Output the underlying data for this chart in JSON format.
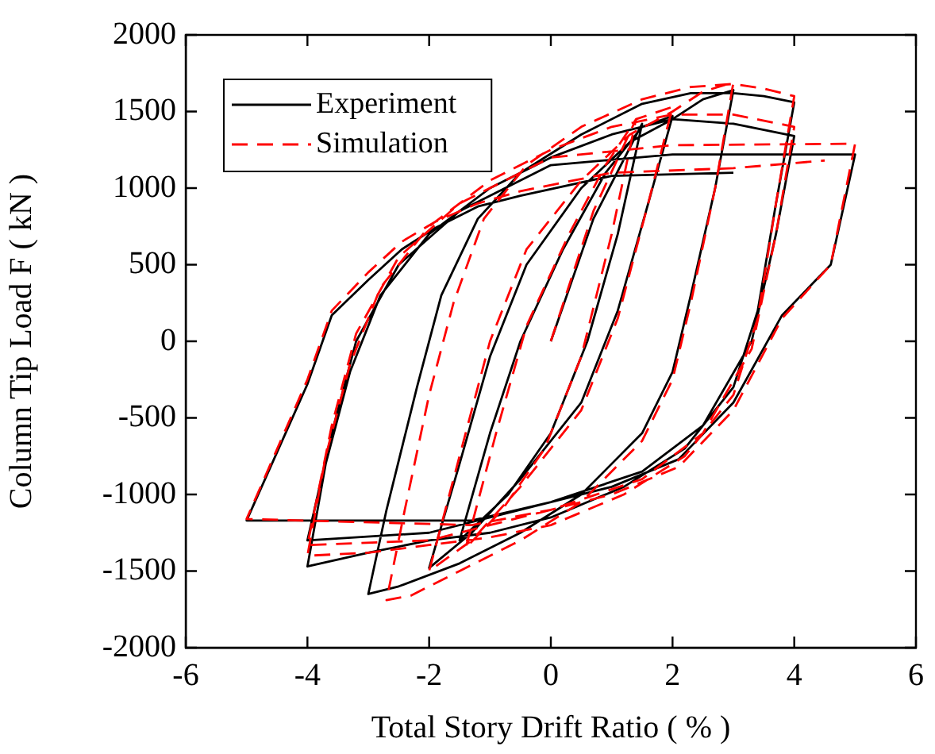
{
  "chart_data": {
    "type": "line",
    "xlabel": "Total Story Drift Ratio ( % )",
    "ylabel": "Column Tip Load F ( kN )",
    "xlim": [
      -6,
      6
    ],
    "xticks": [
      -6,
      -4,
      -2,
      0,
      2,
      4,
      6
    ],
    "ylim": [
      -2000,
      2000
    ],
    "yticks": [
      -2000,
      -1500,
      -1000,
      -500,
      0,
      500,
      1000,
      1500,
      2000
    ],
    "grid": false,
    "legend": "top left",
    "marker": "none",
    "series": [
      {
        "name": "Experiment",
        "color": "#000000",
        "line_style": "solid",
        "x": [
          0,
          0.7,
          1.5,
          1.1,
          0.6,
          0,
          -0.7,
          -1.5,
          -1,
          -0.5,
          0.2,
          0.9,
          1.5,
          2,
          1.6,
          1.1,
          0.5,
          -0.5,
          -1.3,
          -2,
          -1.5,
          -1,
          -0.4,
          0.5,
          1.3,
          2,
          2.5,
          3,
          2.7,
          2.3,
          2,
          1.5,
          0.5,
          -0.5,
          -1.5,
          -2.5,
          -3,
          -2.7,
          -2.2,
          -1.8,
          -1.2,
          -0.5,
          0.5,
          1.5,
          2.3,
          3,
          3.5,
          4,
          3.7,
          3.4,
          3,
          2.2,
          1.2,
          0,
          -1,
          -2,
          -3,
          -4,
          -3.7,
          -3.3,
          -2.8,
          -2,
          -1,
          0,
          1,
          2,
          3,
          4,
          3.7,
          3.3,
          2.5,
          1.5,
          0,
          -2,
          -4,
          -3.6,
          -3.2,
          -2.5,
          -1.5,
          0,
          2,
          5,
          4.6,
          3.8,
          3,
          2.1,
          1,
          0,
          -1.3,
          -5,
          -4,
          -3.6,
          -3,
          -2.45,
          -1.9,
          -1.2,
          -0.5,
          1,
          3
        ],
        "values": [
          0,
          800,
          1420,
          700,
          0,
          -600,
          -1000,
          -1300,
          -600,
          0,
          600,
          1100,
          1400,
          1470,
          900,
          200,
          -400,
          -900,
          -1250,
          -1480,
          -800,
          -100,
          500,
          1000,
          1300,
          1450,
          1580,
          1640,
          1000,
          300,
          -200,
          -600,
          -1000,
          -1250,
          -1450,
          -1600,
          -1650,
          -1100,
          -300,
          300,
          800,
          1100,
          1350,
          1550,
          1620,
          1620,
          1600,
          1560,
          900,
          200,
          -300,
          -700,
          -950,
          -1150,
          -1250,
          -1300,
          -1380,
          -1470,
          -800,
          -200,
          300,
          700,
          1000,
          1200,
          1350,
          1450,
          1420,
          1340,
          700,
          0,
          -550,
          -850,
          -1050,
          -1250,
          -1300,
          -600,
          0,
          500,
          850,
          1150,
          1220,
          1220,
          500,
          170,
          -400,
          -770,
          -950,
          -1050,
          -1170,
          -1170,
          -280,
          170,
          400,
          600,
          740,
          880,
          950,
          1080,
          1100
        ]
      },
      {
        "name": "Simulation",
        "color": "#ff0000",
        "line_style": "dashed",
        "x": [
          0,
          0.7,
          1.4,
          1.0,
          0.5,
          -0.1,
          -0.8,
          -1.4,
          -0.9,
          -0.4,
          0.3,
          0.9,
          1.4,
          2,
          1.6,
          1.1,
          0.5,
          -0.5,
          -1.3,
          -2,
          -1.5,
          -1,
          -0.4,
          0.5,
          1.3,
          2,
          2.5,
          3,
          2.7,
          2.3,
          2,
          1.5,
          0.5,
          -0.5,
          -1.5,
          -2.3,
          -2.7,
          -2.4,
          -2,
          -1.6,
          -1.1,
          -0.4,
          0.5,
          1.5,
          2.3,
          3,
          3.5,
          4,
          3.7,
          3.4,
          3,
          2.2,
          1.2,
          0,
          -1,
          -2,
          -3,
          -4,
          -3.7,
          -3.3,
          -2.8,
          -2,
          -1,
          0,
          1,
          2,
          3,
          4,
          3.7,
          3.3,
          2.5,
          1.5,
          0,
          -2,
          -4,
          -3.6,
          -3.2,
          -2.5,
          -1.5,
          0,
          2,
          5,
          4.6,
          3.8,
          3,
          2.1,
          1,
          0,
          -1.3,
          -5,
          -4,
          -3.6,
          -3,
          -2.45,
          -1.9,
          -1.2,
          -0.5,
          1,
          3,
          4.5
        ],
        "values": [
          0,
          850,
          1450,
          700,
          -100,
          -700,
          -1100,
          -1350,
          -600,
          100,
          700,
          1150,
          1450,
          1530,
          900,
          150,
          -450,
          -950,
          -1300,
          -1500,
          -750,
          0,
          600,
          1050,
          1350,
          1500,
          1630,
          1690,
          1000,
          250,
          -250,
          -650,
          -1050,
          -1300,
          -1500,
          -1660,
          -1690,
          -1100,
          -350,
          250,
          800,
          1150,
          1400,
          1580,
          1660,
          1680,
          1650,
          1600,
          900,
          150,
          -350,
          -750,
          -1000,
          -1200,
          -1280,
          -1330,
          -1380,
          -1400,
          -750,
          -150,
          350,
          750,
          1050,
          1250,
          1400,
          1480,
          1480,
          1400,
          700,
          -50,
          -600,
          -900,
          -1100,
          -1300,
          -1330,
          -550,
          50,
          550,
          900,
          1200,
          1280,
          1290,
          500,
          150,
          -450,
          -820,
          -1000,
          -1100,
          -1200,
          -1160,
          -250,
          200,
          450,
          650,
          780,
          900,
          980,
          1100,
          1130,
          1180
        ]
      }
    ]
  }
}
